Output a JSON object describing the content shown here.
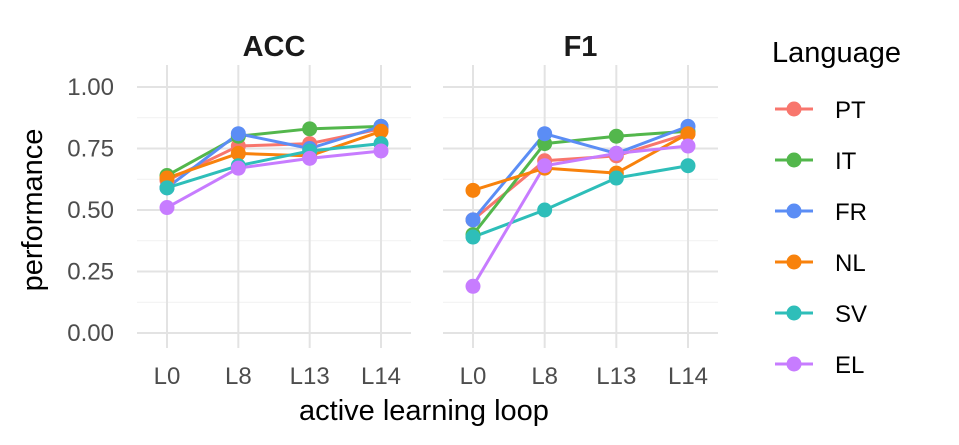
{
  "chart_data": {
    "type": "line",
    "ylabel": "performance",
    "xlabel": "active learning loop",
    "ylim": [
      0,
      1
    ],
    "yticks": [
      "0.00",
      "0.25",
      "0.50",
      "0.75",
      "1.00"
    ],
    "ytick_values": [
      0,
      0.25,
      0.5,
      0.75,
      1.0
    ],
    "categories": [
      "L0",
      "L8",
      "L13",
      "L14"
    ],
    "legend": {
      "title": "Language",
      "position": "right"
    },
    "colors": {
      "PT": "#F8766D",
      "IT": "#53B74C",
      "FR": "#5B8DF5",
      "NL": "#F8820C",
      "SV": "#2EBEB9",
      "EL": "#C77CFF"
    },
    "facets": [
      {
        "title": "ACC",
        "series": [
          {
            "name": "PT",
            "values": [
              0.62,
              0.76,
              0.77,
              0.83
            ]
          },
          {
            "name": "IT",
            "values": [
              0.64,
              0.8,
              0.83,
              0.84
            ]
          },
          {
            "name": "FR",
            "values": [
              0.59,
              0.81,
              0.75,
              0.84
            ]
          },
          {
            "name": "NL",
            "values": [
              0.63,
              0.73,
              0.72,
              0.82
            ]
          },
          {
            "name": "SV",
            "values": [
              0.59,
              0.68,
              0.74,
              0.77
            ]
          },
          {
            "name": "EL",
            "values": [
              0.51,
              0.67,
              0.71,
              0.74
            ]
          }
        ]
      },
      {
        "title": "F1",
        "series": [
          {
            "name": "PT",
            "values": [
              0.46,
              0.7,
              0.72,
              0.81
            ]
          },
          {
            "name": "IT",
            "values": [
              0.4,
              0.77,
              0.8,
              0.82
            ]
          },
          {
            "name": "FR",
            "values": [
              0.46,
              0.81,
              0.73,
              0.84
            ]
          },
          {
            "name": "NL",
            "values": [
              0.58,
              0.67,
              0.65,
              0.81
            ]
          },
          {
            "name": "SV",
            "values": [
              0.39,
              0.5,
              0.63,
              0.68
            ]
          },
          {
            "name": "EL",
            "values": [
              0.19,
              0.68,
              0.73,
              0.76
            ]
          }
        ]
      }
    ]
  }
}
